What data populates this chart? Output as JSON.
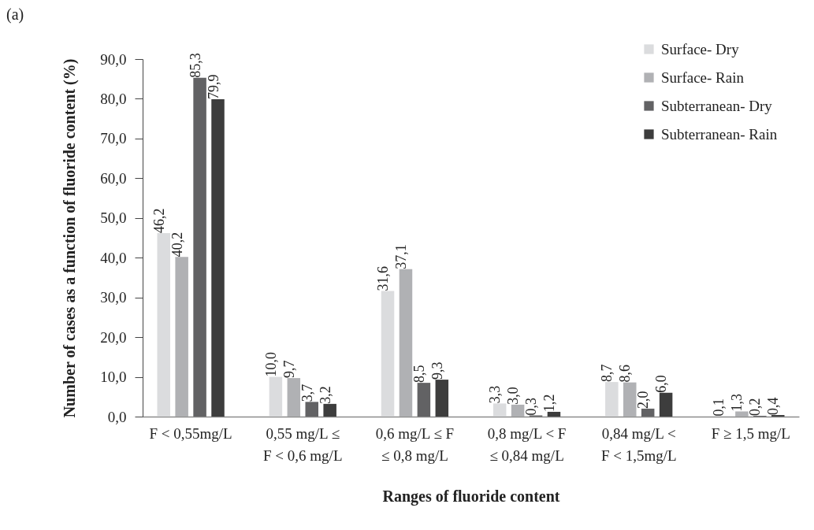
{
  "chart_data": {
    "type": "bar",
    "title": "(a)",
    "xlabel": "Ranges of fluoride content",
    "ylabel": "Number of cases as a function of fluoride content (%)",
    "categories": [
      "F < 0,55mg/L",
      "0,55 mg/L ≤\nF < 0,6 mg/L",
      "0,6 mg/L ≤ F\n≤ 0,8 mg/L",
      "0,8 mg/L < F\n≤ 0,84 mg/L",
      "0,84 mg/L <\nF < 1,5mg/L",
      "F ≥ 1,5 mg/L"
    ],
    "series": [
      {
        "name": "Surface- Dry",
        "color": "#dbdcde",
        "values": [
          46.2,
          10.0,
          31.6,
          3.3,
          8.7,
          0.1
        ],
        "value_labels": [
          "46,2",
          "10,0",
          "31,6",
          "3,3",
          "8,7",
          "0,1"
        ]
      },
      {
        "name": "Surface- Rain",
        "color": "#b0b1b4",
        "values": [
          40.2,
          9.7,
          37.1,
          3.0,
          8.6,
          1.3
        ],
        "value_labels": [
          "40,2",
          "9,7",
          "37,1",
          "3,0",
          "8,6",
          "1,3"
        ]
      },
      {
        "name": "Subterranean- Dry",
        "color": "#626264",
        "values": [
          85.3,
          3.7,
          8.5,
          0.3,
          2.0,
          0.2
        ],
        "value_labels": [
          "85,3",
          "3,7",
          "8,5",
          "0,3",
          "2,0",
          "0,2"
        ]
      },
      {
        "name": "Subterranean- Rain",
        "color": "#3d3d3d",
        "values": [
          79.9,
          3.2,
          9.3,
          1.2,
          6.0,
          0.4
        ],
        "value_labels": [
          "79,9",
          "3,2",
          "9,3",
          "1,2",
          "6,0",
          "0,4"
        ]
      }
    ],
    "ylim": [
      0,
      90
    ],
    "yticks": [
      {
        "value": 0,
        "label": "0,0"
      },
      {
        "value": 10,
        "label": "10,0"
      },
      {
        "value": 20,
        "label": "20,0"
      },
      {
        "value": 30,
        "label": "30,0"
      },
      {
        "value": 40,
        "label": "40,0"
      },
      {
        "value": 50,
        "label": "50,0"
      },
      {
        "value": 60,
        "label": "60,0"
      },
      {
        "value": 70,
        "label": "70,0"
      },
      {
        "value": 80,
        "label": "80,0"
      },
      {
        "value": 90,
        "label": "90,0"
      }
    ],
    "legend": "top right"
  }
}
